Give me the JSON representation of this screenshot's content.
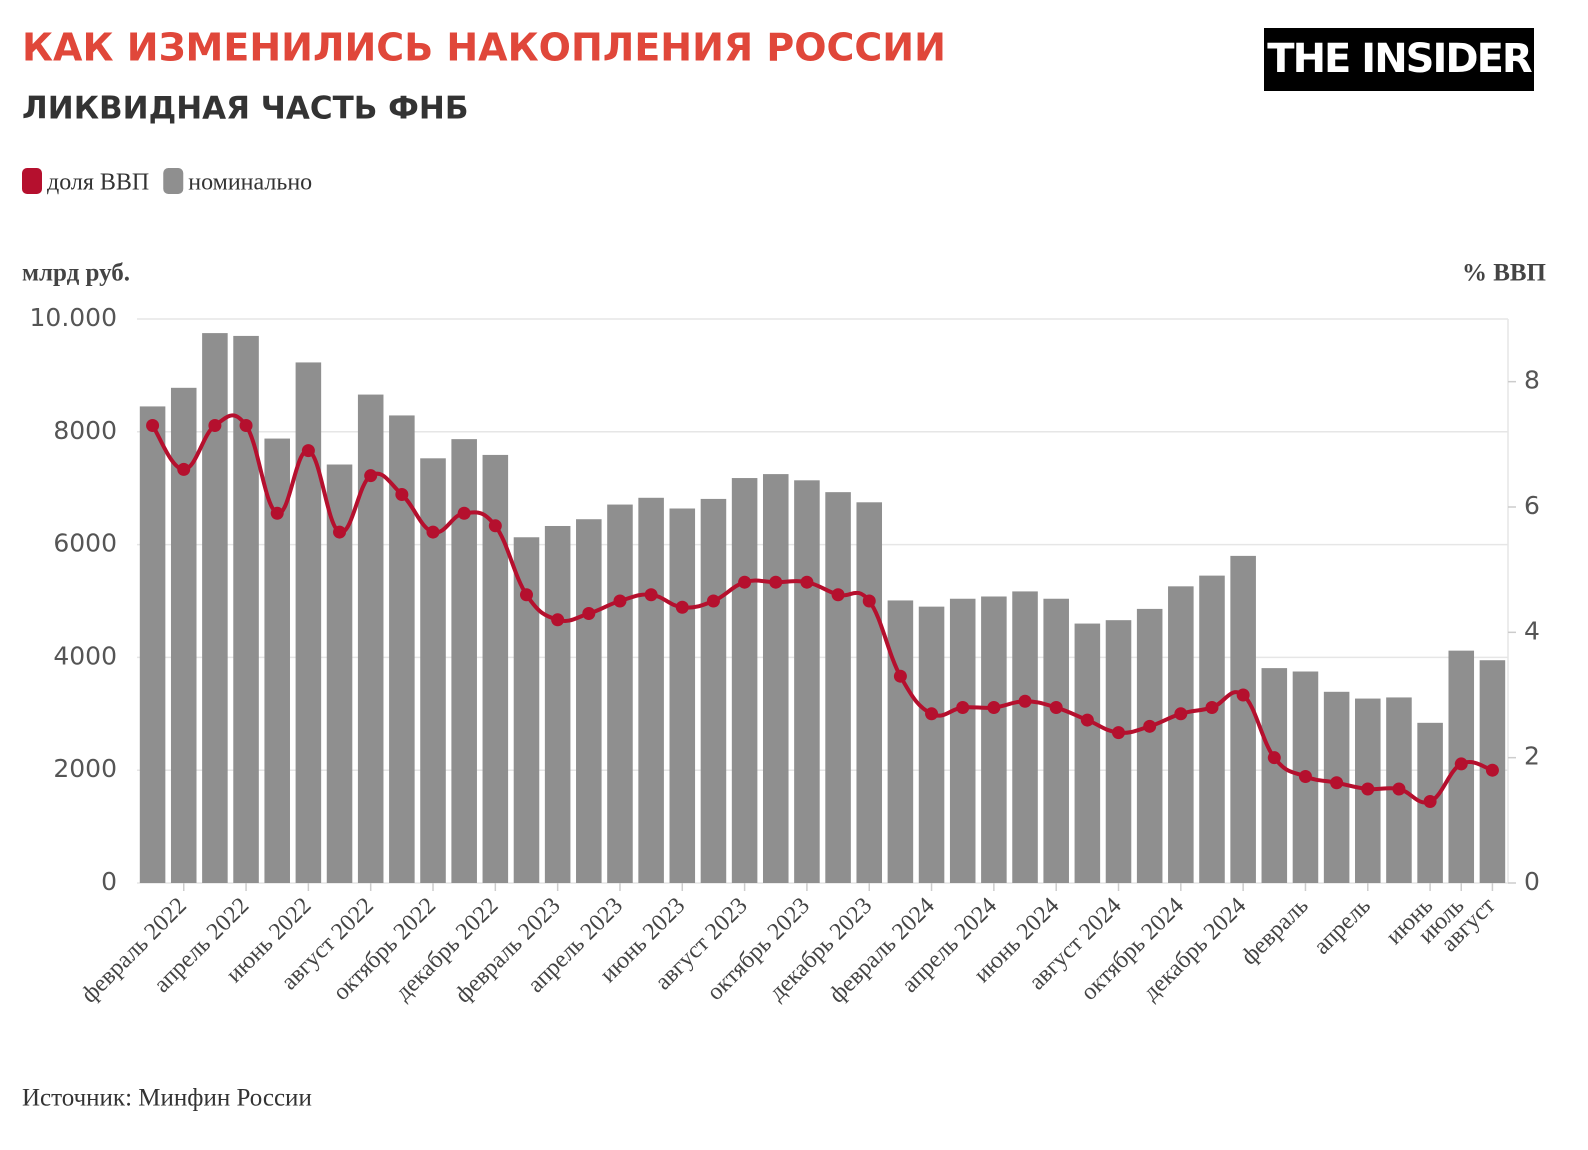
{
  "chart_data": {
    "type": "bar-line",
    "title": "КАК ИЗМЕНИЛИСЬ НАКОПЛЕНИЯ РОССИИ",
    "subtitle": "ЛИКВИДНАЯ ЧАСТЬ ФНБ",
    "logo": "THE INSIDER",
    "y_label": "млрд руб.",
    "y2_label": "% ВВП",
    "source": "Источник: Минфин России",
    "categories": [
      null,
      "февраль 2022",
      null,
      "апрель 2022",
      null,
      "июнь 2022",
      null,
      "август 2022",
      null,
      "октябрь 2022",
      null,
      "декабрь 2022",
      null,
      "февраль 2023",
      null,
      "апрель 2023",
      null,
      "июнь 2023",
      null,
      "август 2023",
      null,
      "октябрь 2023",
      null,
      "декабрь 2023",
      null,
      "февраль 2024",
      null,
      "апрель 2024",
      null,
      "июнь 2024",
      null,
      "август 2024",
      null,
      "октябрь 2024",
      null,
      "декабрь 2024",
      null,
      "февраль",
      null,
      "апрель",
      null,
      "июнь",
      "июль",
      "август"
    ],
    "series": [
      {
        "name": "доля ВВП",
        "color": "#b5102e",
        "type": "line",
        "axis": "y2",
        "values": [
          7.3,
          6.6,
          7.3,
          7.3,
          5.9,
          6.9,
          5.6,
          6.5,
          6.2,
          5.6,
          5.9,
          5.7,
          4.6,
          4.2,
          4.3,
          4.5,
          4.6,
          4.4,
          4.5,
          4.8,
          4.8,
          4.8,
          4.6,
          4.5,
          3.3,
          2.7,
          2.8,
          2.8,
          2.9,
          2.8,
          2.6,
          2.4,
          2.5,
          2.7,
          2.8,
          3.0,
          2.0,
          1.7,
          1.6,
          1.5,
          1.5,
          1.3,
          1.9,
          1.8
        ]
      },
      {
        "name": "номинально",
        "color": "#8f8f8f",
        "type": "bar",
        "axis": "y",
        "values": [
          8450,
          8780,
          9750,
          9700,
          7880,
          9230,
          7420,
          8660,
          8290,
          7530,
          7870,
          7590,
          6130,
          6330,
          6450,
          6710,
          6830,
          6640,
          6810,
          7180,
          7250,
          7140,
          6930,
          6750,
          5010,
          4900,
          5040,
          5080,
          5170,
          5040,
          4600,
          4660,
          4860,
          5260,
          5450,
          5800,
          3810,
          3750,
          3390,
          3270,
          3290,
          2840,
          4120,
          3950
        ]
      }
    ],
    "ylim": [
      0,
      10000
    ],
    "yticks": [
      0,
      2000,
      4000,
      6000,
      8000,
      {
        "value": 10000,
        "label": "10.000"
      }
    ],
    "y2lim": [
      0,
      9
    ],
    "y2ticks": [
      0,
      2,
      4,
      6,
      8
    ],
    "grid": true
  }
}
